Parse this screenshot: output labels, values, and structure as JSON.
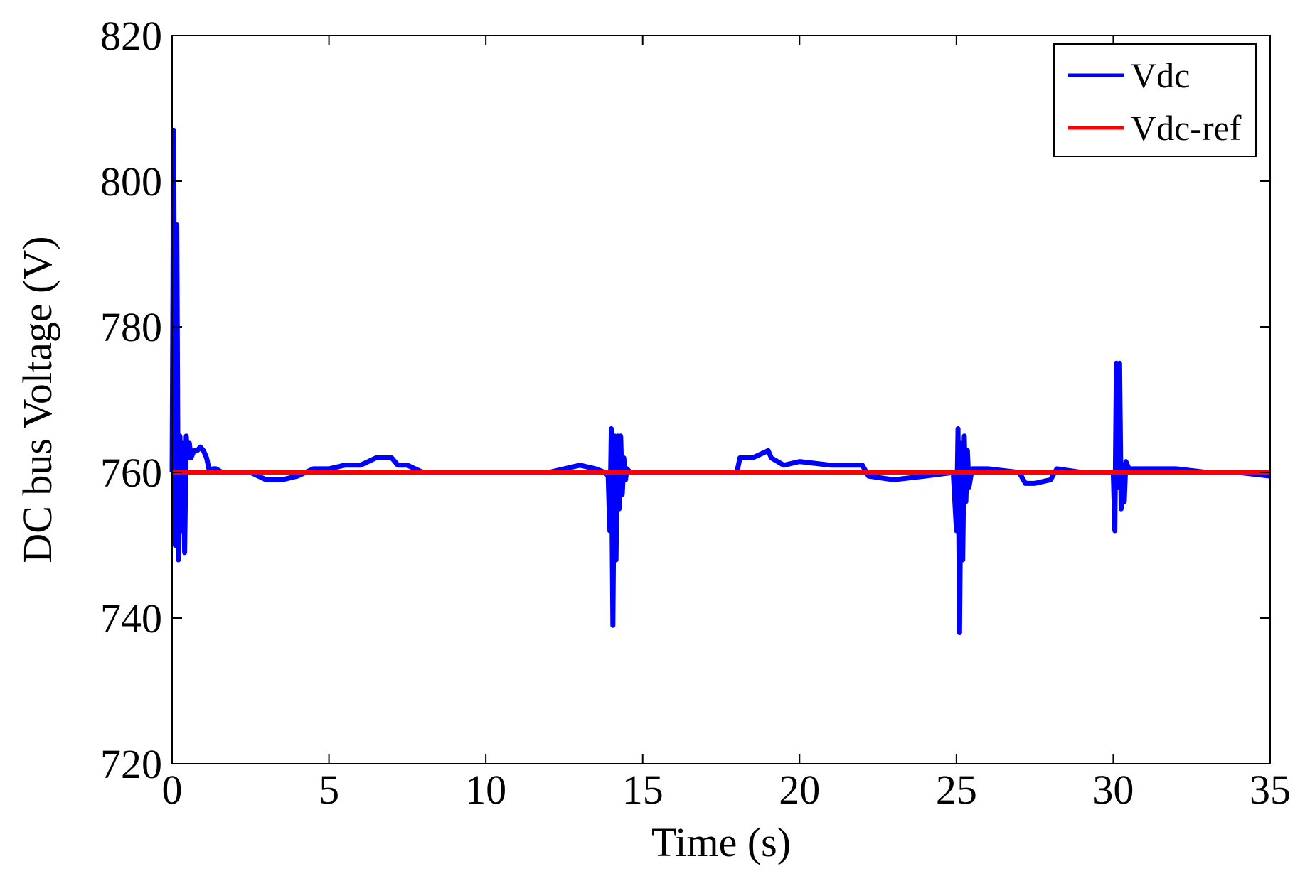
{
  "chart_data": {
    "type": "line",
    "title": "",
    "xlabel": "Time (s)",
    "ylabel": "DC bus Voltage (V)",
    "xlim": [
      0,
      35
    ],
    "ylim": [
      720,
      820
    ],
    "xticks": [
      0,
      5,
      10,
      15,
      20,
      25,
      30,
      35
    ],
    "yticks": [
      720,
      740,
      760,
      780,
      800,
      820
    ],
    "grid": false,
    "legend_position": "top-right",
    "series": [
      {
        "name": "Vdc",
        "color": "#0000ff",
        "x": [
          0,
          0.05,
          0.1,
          0.15,
          0.2,
          0.25,
          0.3,
          0.35,
          0.4,
          0.45,
          0.5,
          0.55,
          0.6,
          0.7,
          0.8,
          0.9,
          1.0,
          1.1,
          1.2,
          1.3,
          1.4,
          1.6,
          2.0,
          2.5,
          3.0,
          3.5,
          4.0,
          4.5,
          5.0,
          5.5,
          6.0,
          6.5,
          7.0,
          7.2,
          7.5,
          8.0,
          8.5,
          9.0,
          10.0,
          11.0,
          12.0,
          12.5,
          13.0,
          13.5,
          13.8,
          13.9,
          13.95,
          14.0,
          14.05,
          14.1,
          14.15,
          14.2,
          14.25,
          14.3,
          14.35,
          14.4,
          14.45,
          14.5,
          14.6,
          15.0,
          16.0,
          17.0,
          18.0,
          18.1,
          18.5,
          19.0,
          19.1,
          19.5,
          20.0,
          21.0,
          22.0,
          22.2,
          23.0,
          24.0,
          24.9,
          25.0,
          25.05,
          25.1,
          25.15,
          25.2,
          25.25,
          25.3,
          25.35,
          25.4,
          25.5,
          26.0,
          27.0,
          27.2,
          27.5,
          28.0,
          28.2,
          29.0,
          30.0,
          30.05,
          30.1,
          30.15,
          30.2,
          30.25,
          30.3,
          30.35,
          30.4,
          30.45,
          30.5,
          30.6,
          31.0,
          32.0,
          33.0,
          34.0,
          35.0
        ],
        "y": [
          760,
          807,
          750,
          794,
          748,
          765,
          752,
          764,
          749,
          765,
          762,
          764,
          762,
          763,
          763,
          763.5,
          763,
          762,
          760,
          760.5,
          760.5,
          760,
          760,
          760,
          759,
          759,
          759.5,
          760.5,
          760.5,
          761,
          761,
          762,
          762,
          761,
          761,
          760,
          760,
          760,
          760,
          760,
          760,
          760.5,
          761,
          760.5,
          760,
          759.5,
          752,
          766,
          739,
          765,
          748,
          765,
          755,
          765,
          757,
          762,
          759,
          760.5,
          760,
          760,
          760,
          760,
          760,
          762,
          762,
          763,
          762,
          761,
          761.5,
          761,
          761,
          759.5,
          759,
          759.5,
          760,
          752,
          766,
          738,
          764,
          748,
          765,
          756,
          763,
          758,
          760.5,
          760.5,
          760,
          758.5,
          758.5,
          759,
          760.5,
          760,
          760,
          752,
          775,
          758,
          775,
          755,
          761,
          756,
          761.5,
          761,
          760.5,
          760.5,
          760.5,
          760.5,
          760,
          760,
          759.5
        ]
      },
      {
        "name": "Vdc-ref",
        "color": "#ff0000",
        "x": [
          0,
          35
        ],
        "y": [
          760,
          760
        ]
      }
    ]
  }
}
